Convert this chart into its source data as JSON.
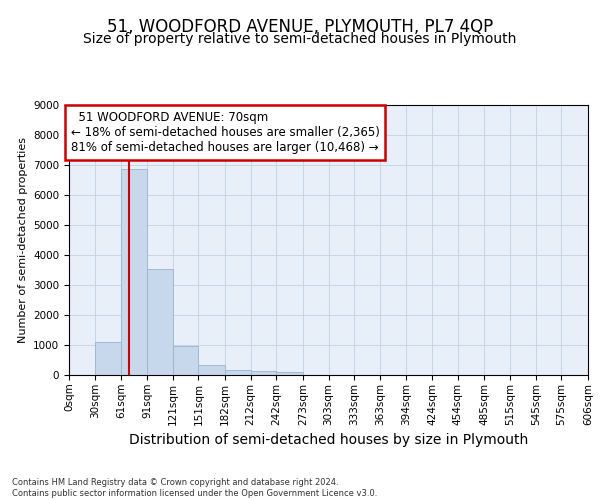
{
  "title_main": "51, WOODFORD AVENUE, PLYMOUTH, PL7 4QP",
  "title_sub": "Size of property relative to semi-detached houses in Plymouth",
  "xlabel": "Distribution of semi-detached houses by size in Plymouth",
  "ylabel": "Number of semi-detached properties",
  "footnote": "Contains HM Land Registry data © Crown copyright and database right 2024.\nContains public sector information licensed under the Open Government Licence v3.0.",
  "bar_bins": [
    0,
    30,
    61,
    91,
    121,
    151,
    182,
    212,
    242,
    273,
    303,
    333,
    363,
    394,
    424,
    454,
    485,
    515,
    545,
    575,
    606
  ],
  "bar_labels": [
    "0sqm",
    "30sqm",
    "61sqm",
    "91sqm",
    "121sqm",
    "151sqm",
    "182sqm",
    "212sqm",
    "242sqm",
    "273sqm",
    "303sqm",
    "333sqm",
    "363sqm",
    "394sqm",
    "424sqm",
    "454sqm",
    "485sqm",
    "515sqm",
    "545sqm",
    "575sqm",
    "606sqm"
  ],
  "bar_values": [
    0,
    1100,
    6850,
    3550,
    975,
    350,
    175,
    125,
    100,
    0,
    0,
    0,
    0,
    0,
    0,
    0,
    0,
    0,
    0,
    0
  ],
  "bar_color": "#c8d8ec",
  "bar_edgecolor": "#9ab4cc",
  "red_line_x": 70,
  "annotation_text": "  51 WOODFORD AVENUE: 70sqm\n← 18% of semi-detached houses are smaller (2,365)\n81% of semi-detached houses are larger (10,468) →",
  "annotation_box_color": "#ffffff",
  "annotation_border_color": "#cc0000",
  "ylim": [
    0,
    9000
  ],
  "yticks": [
    0,
    1000,
    2000,
    3000,
    4000,
    5000,
    6000,
    7000,
    8000,
    9000
  ],
  "grid_color": "#c8d4e8",
  "bg_color": "#e8eff8",
  "red_line_color": "#cc0000",
  "title_main_fontsize": 12,
  "title_sub_fontsize": 10,
  "xlabel_fontsize": 10,
  "ylabel_fontsize": 8,
  "tick_fontsize": 7.5,
  "annotation_fontsize": 8.5
}
